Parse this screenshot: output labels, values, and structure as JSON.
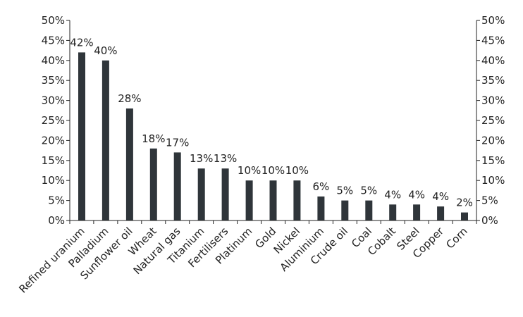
{
  "chart_data": {
    "type": "bar",
    "title": "",
    "xlabel": "",
    "ylabel": "",
    "ylim": [
      0,
      50
    ],
    "yticks": [
      "0%",
      "5%",
      "10%",
      "15%",
      "20%",
      "25%",
      "30%",
      "35%",
      "40%",
      "45%",
      "50%"
    ],
    "secondary_y_axis": true,
    "grid": false,
    "legend": "none",
    "bar_color": "#2f353a",
    "categories": [
      "Refined uranium",
      "Palladium",
      "Sunflower oil",
      "Wheat",
      "Natural gas",
      "Titanium",
      "Fertilisers",
      "Platinum",
      "Gold",
      "Nickel",
      "Aluminium",
      "Crude oil",
      "Coal",
      "Cobalt",
      "Steel",
      "Copper",
      "Corn"
    ],
    "values": [
      42,
      40,
      28,
      18,
      17,
      13,
      13,
      10,
      10,
      10,
      6,
      5,
      5,
      4,
      4,
      3.5,
      2
    ],
    "data_labels": [
      "42%",
      "40%",
      "28%",
      "18%",
      "17%",
      "13%",
      "13%",
      "10%",
      "10%",
      "10%",
      "6%",
      "5%",
      "5%",
      "4%",
      "4%",
      "4%",
      "2%"
    ]
  }
}
